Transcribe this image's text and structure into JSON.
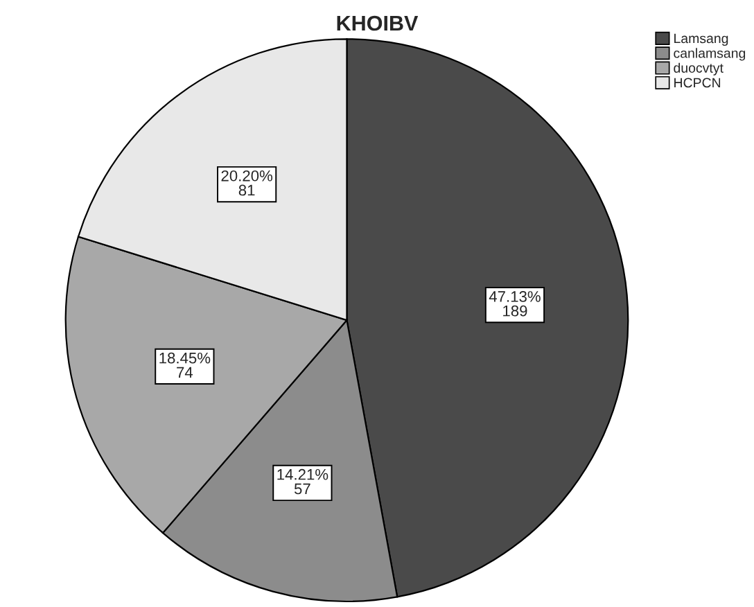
{
  "chart_data": {
    "type": "pie",
    "title": "KHOIBV",
    "categories": [
      "Lamsang",
      "canlamsang",
      "duocvtyt",
      "HCPCN"
    ],
    "values": [
      189,
      57,
      74,
      81
    ],
    "colors": [
      "#4a4a4a",
      "#8c8c8c",
      "#a8a8a8",
      "#e8e8e8"
    ],
    "value_labels": [
      "47.13%\n189",
      "14.21%\n57",
      "18.45%\n74",
      "20.20%\n81"
    ],
    "legend": "top right"
  }
}
